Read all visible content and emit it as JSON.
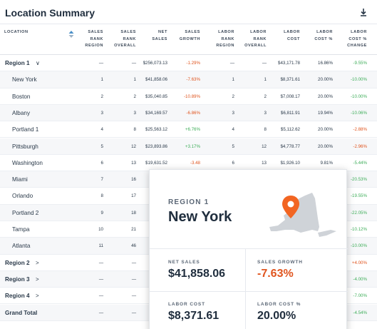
{
  "title": "Location Summary",
  "columns": {
    "location": "LOCATION",
    "sales_rank_region": [
      "SALES",
      "RANK",
      "REGION"
    ],
    "sales_rank_overall": [
      "SALES",
      "RANK",
      "OVERALL"
    ],
    "net_sales": [
      "NET",
      "SALES"
    ],
    "sales_growth": [
      "SALES",
      "GROWTH"
    ],
    "labor_rank_region": [
      "LABOR",
      "RANK",
      "REGION"
    ],
    "labor_rank_overall": [
      "LABOR",
      "RANK",
      "OVERALL"
    ],
    "labor_cost": [
      "LABOR",
      "COST"
    ],
    "labor_cost_pct": [
      "LABOR",
      "COST %"
    ],
    "labor_cost_pct_change": [
      "LABOR",
      "COST %",
      "CHANGE"
    ]
  },
  "rows": [
    {
      "name": "Region 1",
      "group": true,
      "chev": "∨",
      "srr": "—",
      "sro": "—",
      "ns": "$256,073.13",
      "sg": "-1.29%",
      "sgc": "neg",
      "lrr": "—",
      "lro": "—",
      "lc": "$43,171.78",
      "lcp": "16.86%",
      "lcc": "-9.55%",
      "lccc": "pos"
    },
    {
      "name": "New York",
      "srr": "1",
      "sro": "1",
      "ns": "$41,858.06",
      "sg": "-7.63%",
      "sgc": "neg",
      "lrr": "1",
      "lro": "1",
      "lc": "$8,371.61",
      "lcp": "20.00%",
      "lcc": "-10.00%",
      "lccc": "pos"
    },
    {
      "name": "Boston",
      "srr": "2",
      "sro": "2",
      "ns": "$35,040.85",
      "sg": "-10.89%",
      "sgc": "neg",
      "lrr": "2",
      "lro": "2",
      "lc": "$7,008.17",
      "lcp": "20.00%",
      "lcc": "-10.00%",
      "lccc": "pos"
    },
    {
      "name": "Albany",
      "srr": "3",
      "sro": "3",
      "ns": "$34,169.57",
      "sg": "-6.86%",
      "sgc": "neg",
      "lrr": "3",
      "lro": "3",
      "lc": "$6,811.91",
      "lcp": "19.94%",
      "lcc": "-10.06%",
      "lccc": "pos"
    },
    {
      "name": "Portland 1",
      "srr": "4",
      "sro": "8",
      "ns": "$25,563.12",
      "sg": "+6.76%",
      "sgc": "pos",
      "lrr": "4",
      "lro": "8",
      "lc": "$5,112.62",
      "lcp": "20.00%",
      "lcc": "-2.88%",
      "lccc": "neg"
    },
    {
      "name": "Pittsburgh",
      "srr": "5",
      "sro": "12",
      "ns": "$23,893.86",
      "sg": "+3.17%",
      "sgc": "pos",
      "lrr": "5",
      "lro": "12",
      "lc": "$4,778.77",
      "lcp": "20.00%",
      "lcc": "-2.96%",
      "lccc": "neg"
    },
    {
      "name": "Washington",
      "srr": "6",
      "sro": "13",
      "ns": "$19,631.52",
      "sg": "-3.48",
      "sgc": "neg",
      "lrr": "6",
      "lro": "13",
      "lc": "$1,926.10",
      "lcp": "9.81%",
      "lcc": "-5.44%",
      "lccc": "pos"
    },
    {
      "name": "Miami",
      "srr": "7",
      "sro": "16",
      "ns": "$1",
      "sg": "",
      "lrr": "",
      "lro": "",
      "lc": "",
      "lcp": "",
      "lcc": "-20.53%",
      "lccc": "pos"
    },
    {
      "name": "Orlando",
      "srr": "8",
      "sro": "17",
      "ns": "$1",
      "sg": "",
      "lrr": "",
      "lro": "",
      "lc": "",
      "lcp": "",
      "lcc": "-19.55%",
      "lccc": "pos"
    },
    {
      "name": "Portland 2",
      "srr": "9",
      "sro": "18",
      "ns": "$1",
      "sg": "",
      "lrr": "",
      "lro": "",
      "lc": "",
      "lcp": "",
      "lcc": "-22.05%",
      "lccc": "pos"
    },
    {
      "name": "Tampa",
      "srr": "10",
      "sro": "21",
      "ns": "$",
      "sg": "",
      "lrr": "",
      "lro": "",
      "lc": "",
      "lcp": "",
      "lcc": "-10.12%",
      "lccc": "pos"
    },
    {
      "name": "Atlanta",
      "srr": "11",
      "sro": "46",
      "ns": "$",
      "sg": "",
      "lrr": "",
      "lro": "",
      "lc": "",
      "lcp": "",
      "lcc": "-10.00%",
      "lccc": "pos"
    },
    {
      "name": "Region 2",
      "group": true,
      "chev": ">",
      "srr": "—",
      "sro": "—",
      "ns": "$19",
      "sg": "",
      "lrr": "",
      "lro": "",
      "lc": "",
      "lcp": "",
      "lcc": "+4.00%",
      "lccc": "neg"
    },
    {
      "name": "Region 3",
      "group": true,
      "chev": ">",
      "srr": "—",
      "sro": "—",
      "ns": "$28",
      "sg": "",
      "lrr": "",
      "lro": "",
      "lc": "",
      "lcp": "",
      "lcc": "-4.00%",
      "lccc": "pos"
    },
    {
      "name": "Region 4",
      "group": true,
      "chev": ">",
      "srr": "—",
      "sro": "—",
      "ns": "$16",
      "sg": "",
      "lrr": "",
      "lro": "",
      "lc": "",
      "lcp": "",
      "lcc": "-7.00%",
      "lccc": "pos"
    },
    {
      "name": "Grand Total",
      "group": true,
      "chev": "",
      "srr": "—",
      "sro": "—",
      "ns": "$89",
      "sg": "",
      "lrr": "",
      "lro": "",
      "lc": "",
      "lcp": "",
      "lcc": "-4.54%",
      "lccc": "pos"
    }
  ],
  "popover": {
    "region": "REGION 1",
    "city": "New York",
    "net_sales_label": "NET SALES",
    "net_sales": "$41,858.06",
    "sales_growth_label": "SALES GROWTH",
    "sales_growth": "-7.63%",
    "labor_cost_label": "LABOR COST",
    "labor_cost": "$8,371.61",
    "labor_cost_pct_label": "LABOR COST %",
    "labor_cost_pct": "20.00%",
    "map_icon": "map-pin-icon",
    "accent": "#f26522"
  },
  "colors": {
    "negative": "#e0551f",
    "positive": "#3fae5a"
  }
}
